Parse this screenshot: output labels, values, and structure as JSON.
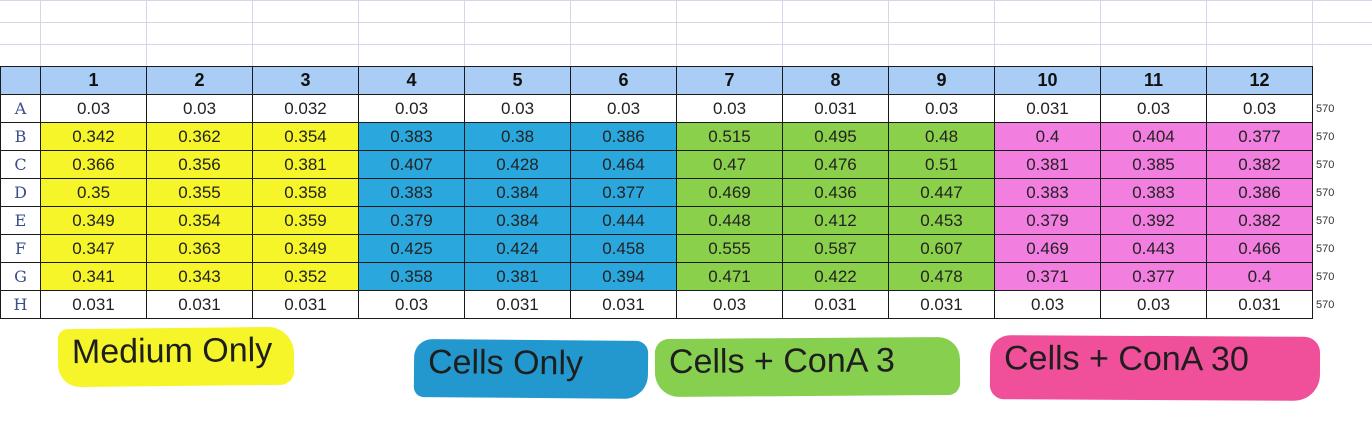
{
  "columns": [
    "1",
    "2",
    "3",
    "4",
    "5",
    "6",
    "7",
    "8",
    "9",
    "10",
    "11",
    "12"
  ],
  "rows": [
    {
      "label": "A",
      "values": [
        "0.03",
        "0.03",
        "0.032",
        "0.03",
        "0.03",
        "0.03",
        "0.03",
        "0.031",
        "0.03",
        "0.031",
        "0.03",
        "0.03"
      ],
      "side": "570"
    },
    {
      "label": "B",
      "values": [
        "0.342",
        "0.362",
        "0.354",
        "0.383",
        "0.38",
        "0.386",
        "0.515",
        "0.495",
        "0.48",
        "0.4",
        "0.404",
        "0.377"
      ],
      "side": "570"
    },
    {
      "label": "C",
      "values": [
        "0.366",
        "0.356",
        "0.381",
        "0.407",
        "0.428",
        "0.464",
        "0.47",
        "0.476",
        "0.51",
        "0.381",
        "0.385",
        "0.382"
      ],
      "side": "570"
    },
    {
      "label": "D",
      "values": [
        "0.35",
        "0.355",
        "0.358",
        "0.383",
        "0.384",
        "0.377",
        "0.469",
        "0.436",
        "0.447",
        "0.383",
        "0.383",
        "0.386"
      ],
      "side": "570"
    },
    {
      "label": "E",
      "values": [
        "0.349",
        "0.354",
        "0.359",
        "0.379",
        "0.384",
        "0.444",
        "0.448",
        "0.412",
        "0.453",
        "0.379",
        "0.392",
        "0.382"
      ],
      "side": "570"
    },
    {
      "label": "F",
      "values": [
        "0.347",
        "0.363",
        "0.349",
        "0.425",
        "0.424",
        "0.458",
        "0.555",
        "0.587",
        "0.607",
        "0.469",
        "0.443",
        "0.466"
      ],
      "side": "570"
    },
    {
      "label": "G",
      "values": [
        "0.341",
        "0.343",
        "0.352",
        "0.358",
        "0.381",
        "0.394",
        "0.471",
        "0.422",
        "0.478",
        "0.371",
        "0.377",
        "0.4"
      ],
      "side": "570"
    },
    {
      "label": "H",
      "values": [
        "0.031",
        "0.031",
        "0.031",
        "0.03",
        "0.031",
        "0.031",
        "0.03",
        "0.031",
        "0.031",
        "0.03",
        "0.03",
        "0.031"
      ],
      "side": "570"
    }
  ],
  "legend": {
    "medium_only": "Medium Only",
    "cells_only": "Cells Only",
    "cells_cona3": "Cells + ConA 3",
    "cells_cona30": "Cells + ConA 30"
  },
  "colors": {
    "medium_only": "#f5f52a",
    "cells_only": "#2aa7dd",
    "cells_cona3": "#8bd04a",
    "cells_cona30": "#f27ee0",
    "header": "#a9cdf4"
  }
}
